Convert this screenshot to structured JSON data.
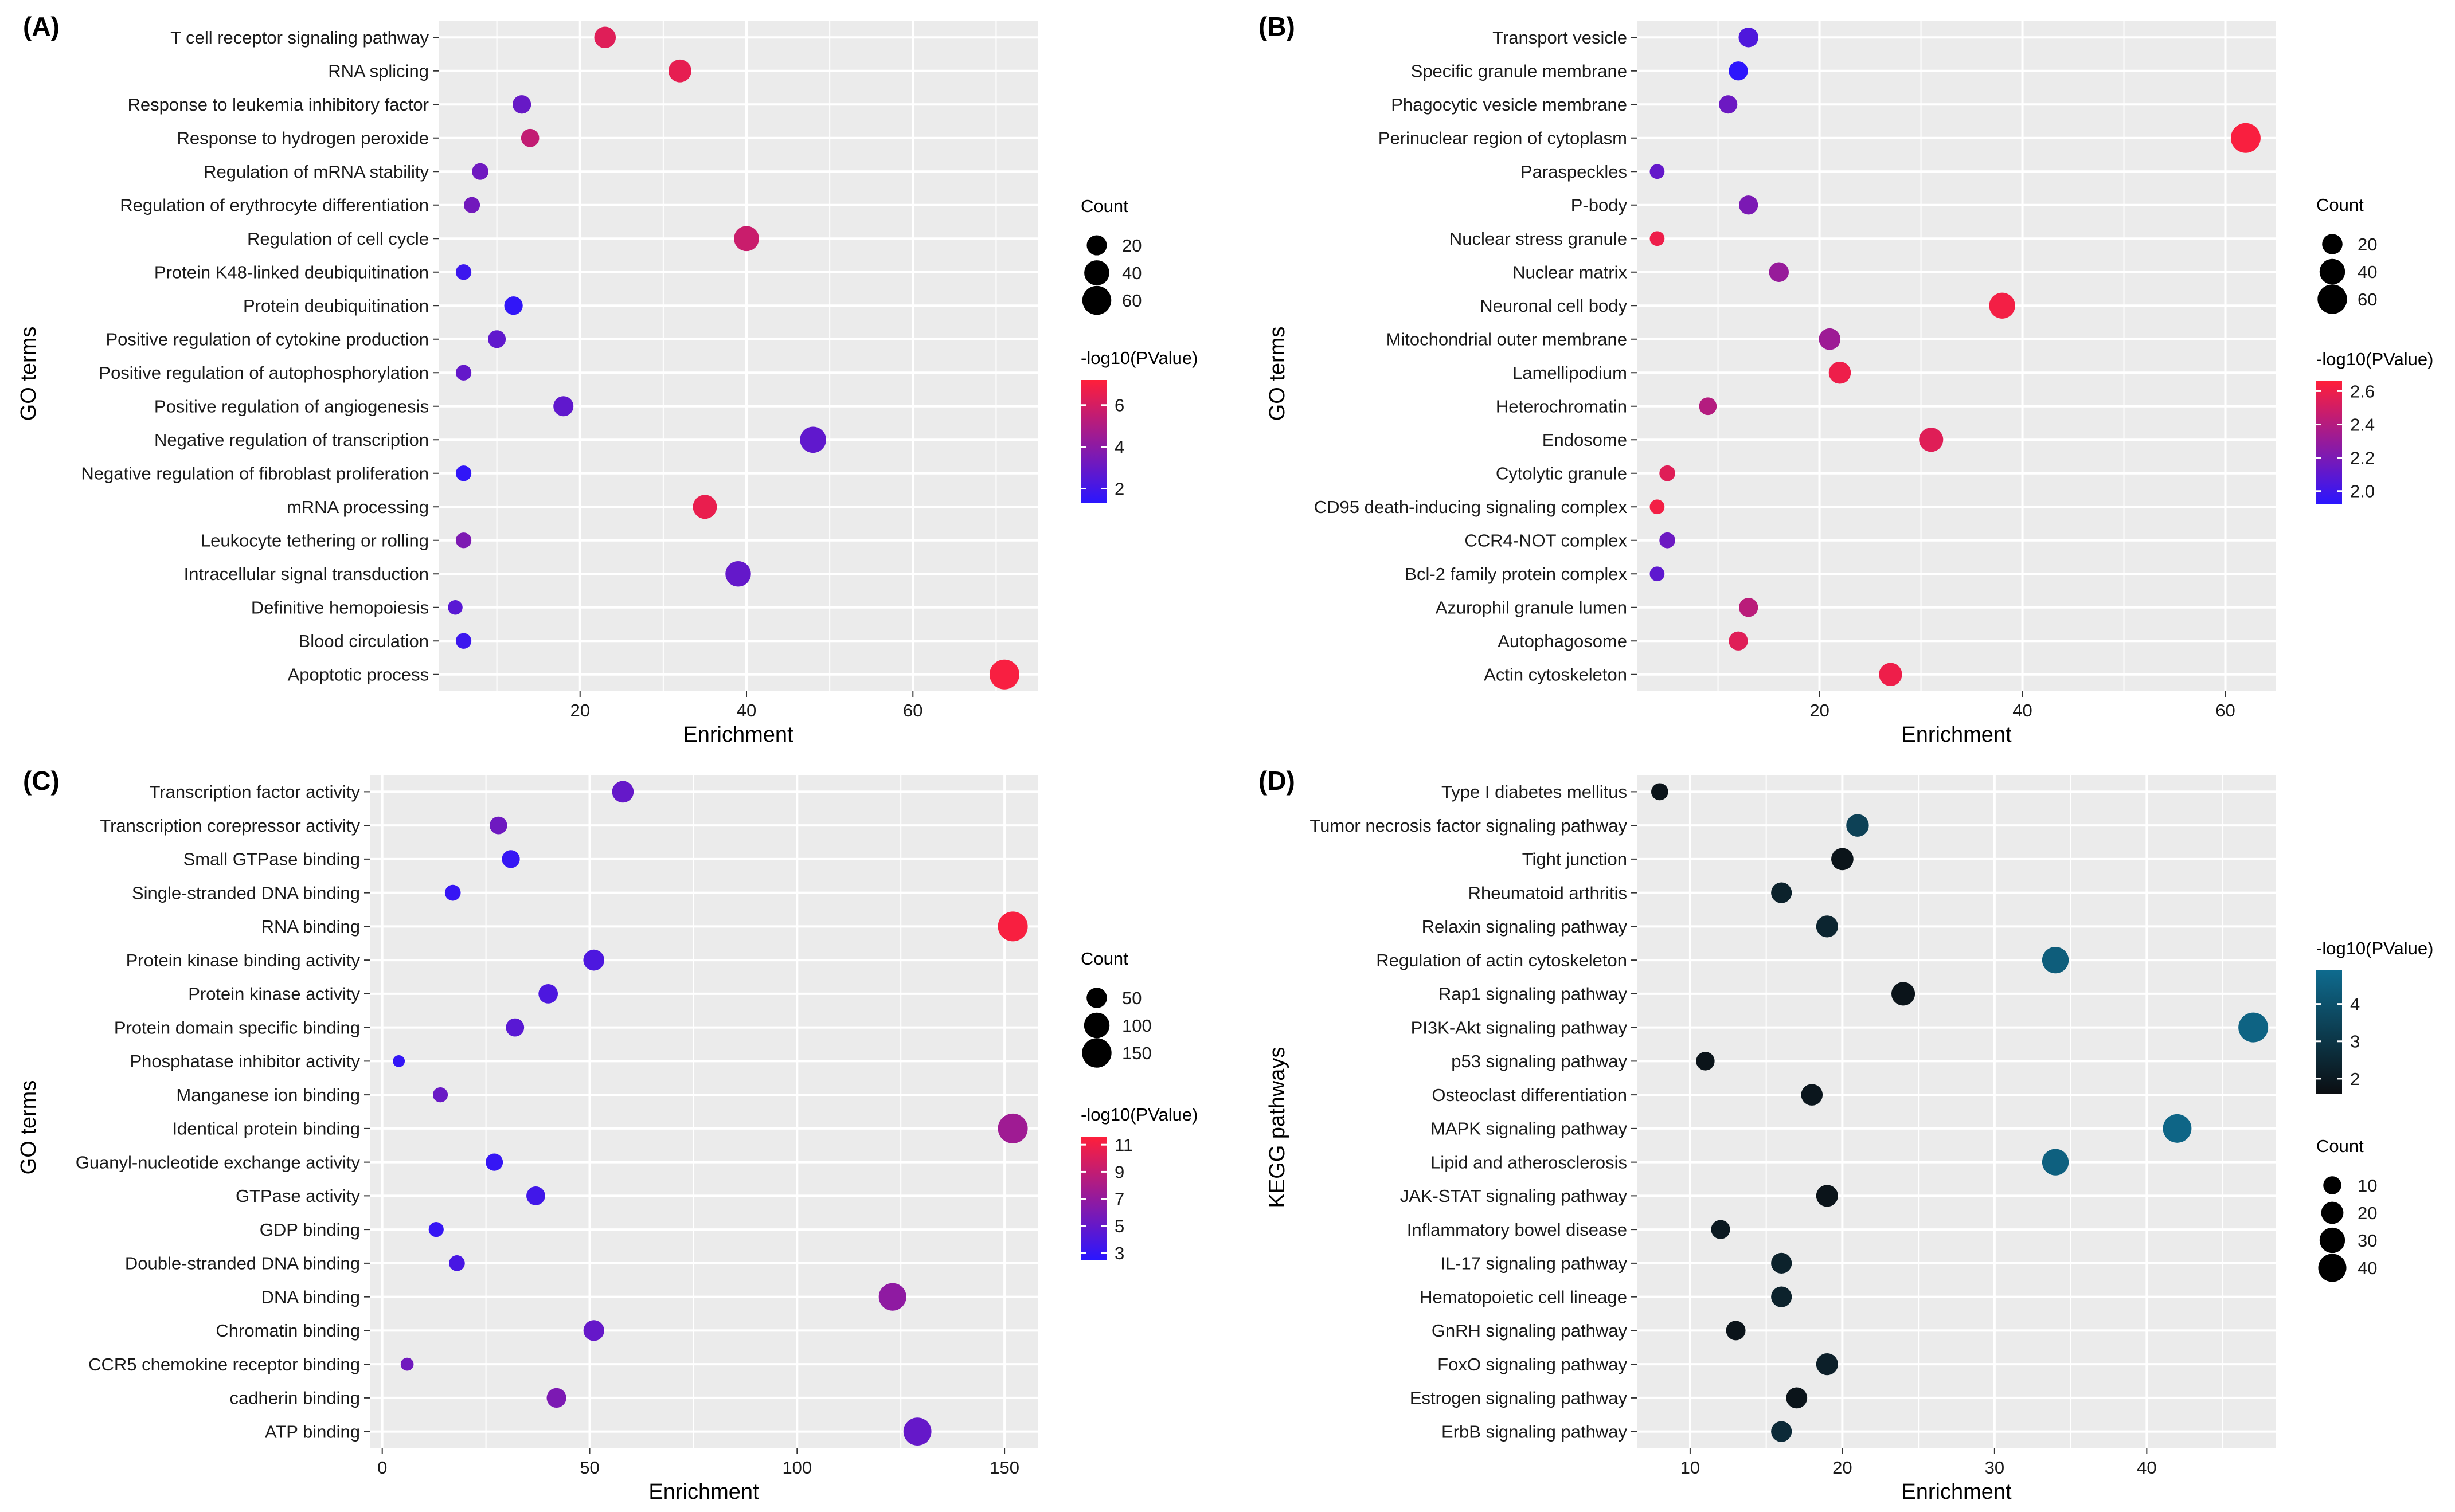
{
  "chart_data": [
    {
      "panel": "(A)",
      "type": "scatter",
      "xlabel": "Enrichment",
      "ylabel": "GO terms",
      "xlim": [
        3,
        75
      ],
      "xticks": [
        20,
        40,
        60
      ],
      "legend_position": "right",
      "size_legend": {
        "title": "Count",
        "values": [
          20,
          40,
          60
        ]
      },
      "color_legend": {
        "title": "-log10(PValue)",
        "ticks": [
          2,
          4,
          6
        ],
        "range": [
          1.3,
          7.2
        ],
        "low": "#2a16ff",
        "high": "#ff1f3a"
      },
      "points": [
        {
          "term": "T cell receptor signaling pathway",
          "enrichment": 23,
          "count": 25,
          "pvalue": 6.3
        },
        {
          "term": "RNA splicing",
          "enrichment": 32,
          "count": 30,
          "pvalue": 6.5
        },
        {
          "term": "Response to leukemia inhibitory factor",
          "enrichment": 13,
          "count": 15,
          "pvalue": 3.0
        },
        {
          "term": "Response to hydrogen peroxide",
          "enrichment": 14,
          "count": 14,
          "pvalue": 5.5
        },
        {
          "term": "Regulation of mRNA stability",
          "enrichment": 8,
          "count": 10,
          "pvalue": 3.2
        },
        {
          "term": "Regulation of erythrocyte differentiation",
          "enrichment": 7,
          "count": 9,
          "pvalue": 3.3
        },
        {
          "term": "Regulation of cell cycle",
          "enrichment": 40,
          "count": 40,
          "pvalue": 5.7
        },
        {
          "term": "Protein K48-linked deubiquitination",
          "enrichment": 6,
          "count": 8,
          "pvalue": 1.8
        },
        {
          "term": "Protein deubiquitination",
          "enrichment": 12,
          "count": 15,
          "pvalue": 1.5
        },
        {
          "term": "Positive regulation of cytokine production",
          "enrichment": 10,
          "count": 13,
          "pvalue": 2.8
        },
        {
          "term": "Positive regulation of autophosphorylation",
          "enrichment": 6,
          "count": 8,
          "pvalue": 2.9
        },
        {
          "term": "Positive regulation of angiogenesis",
          "enrichment": 18,
          "count": 20,
          "pvalue": 2.8
        },
        {
          "term": "Negative regulation of transcription",
          "enrichment": 48,
          "count": 45,
          "pvalue": 2.8
        },
        {
          "term": "Negative regulation of fibroblast proliferation",
          "enrichment": 6,
          "count": 8,
          "pvalue": 1.5
        },
        {
          "term": "mRNA processing",
          "enrichment": 35,
          "count": 35,
          "pvalue": 6.6
        },
        {
          "term": "Leukocyte tethering or rolling",
          "enrichment": 6,
          "count": 8,
          "pvalue": 3.6
        },
        {
          "term": "Intracellular signal transduction",
          "enrichment": 39,
          "count": 42,
          "pvalue": 2.9
        },
        {
          "term": "Definitive hemopoiesis",
          "enrichment": 5,
          "count": 6,
          "pvalue": 2.6
        },
        {
          "term": "Blood circulation",
          "enrichment": 6,
          "count": 8,
          "pvalue": 1.8
        },
        {
          "term": "Apoptotic process",
          "enrichment": 71,
          "count": 65,
          "pvalue": 7.0
        }
      ]
    },
    {
      "panel": "(B)",
      "type": "scatter",
      "xlabel": "Enrichment",
      "ylabel": "GO terms",
      "xlim": [
        2,
        65
      ],
      "xticks": [
        20,
        40,
        60
      ],
      "legend_position": "right",
      "size_legend": {
        "title": "Count",
        "values": [
          20,
          40,
          60
        ]
      },
      "color_legend": {
        "title": "-log10(PValue)",
        "ticks": [
          "2.0",
          "2.2",
          "2.4",
          "2.6"
        ],
        "range": [
          1.92,
          2.66
        ],
        "low": "#2a16ff",
        "high": "#ff1f3a"
      },
      "points": [
        {
          "term": "Transport vesicle",
          "enrichment": 13,
          "count": 18,
          "pvalue": 2.05
        },
        {
          "term": "Specific granule membrane",
          "enrichment": 12,
          "count": 16,
          "pvalue": 1.93
        },
        {
          "term": "Phagocytic vesicle membrane",
          "enrichment": 11,
          "count": 14,
          "pvalue": 2.15
        },
        {
          "term": "Perinuclear region of cytoplasm",
          "enrichment": 62,
          "count": 62,
          "pvalue": 2.64
        },
        {
          "term": "Paraspeckles",
          "enrichment": 4,
          "count": 6,
          "pvalue": 2.12
        },
        {
          "term": "P-body",
          "enrichment": 13,
          "count": 16,
          "pvalue": 2.2
        },
        {
          "term": "Nuclear stress granule",
          "enrichment": 4,
          "count": 6,
          "pvalue": 2.6
        },
        {
          "term": "Nuclear matrix",
          "enrichment": 16,
          "count": 18,
          "pvalue": 2.3
        },
        {
          "term": "Neuronal cell body",
          "enrichment": 38,
          "count": 42,
          "pvalue": 2.62
        },
        {
          "term": "Mitochondrial outer membrane",
          "enrichment": 21,
          "count": 24,
          "pvalue": 2.32
        },
        {
          "term": "Lamellipodium",
          "enrichment": 22,
          "count": 26,
          "pvalue": 2.6
        },
        {
          "term": "Heterochromatin",
          "enrichment": 9,
          "count": 12,
          "pvalue": 2.4
        },
        {
          "term": "Endosome",
          "enrichment": 31,
          "count": 34,
          "pvalue": 2.55
        },
        {
          "term": "Cytolytic granule",
          "enrichment": 5,
          "count": 8,
          "pvalue": 2.55
        },
        {
          "term": "CD95 death-inducing signaling complex",
          "enrichment": 4,
          "count": 6,
          "pvalue": 2.62
        },
        {
          "term": "CCR4-NOT complex",
          "enrichment": 5,
          "count": 8,
          "pvalue": 2.15
        },
        {
          "term": "Bcl-2 family protein complex",
          "enrichment": 4,
          "count": 6,
          "pvalue": 2.1
        },
        {
          "term": "Azurophil granule lumen",
          "enrichment": 13,
          "count": 16,
          "pvalue": 2.42
        },
        {
          "term": "Autophagosome",
          "enrichment": 12,
          "count": 16,
          "pvalue": 2.55
        },
        {
          "term": "Actin cytoskeleton",
          "enrichment": 27,
          "count": 30,
          "pvalue": 2.6
        }
      ]
    },
    {
      "panel": "(C)",
      "type": "scatter",
      "xlabel": "Enrichment",
      "ylabel": "GO terms",
      "xlim": [
        -3,
        158
      ],
      "xticks": [
        0,
        50,
        100,
        150
      ],
      "legend_position": "right",
      "size_legend": {
        "title": "Count",
        "values": [
          50,
          100,
          150
        ]
      },
      "color_legend": {
        "title": "-log10(PValue)",
        "ticks": [
          3,
          5,
          7,
          9,
          11
        ],
        "range": [
          2.5,
          11.6
        ],
        "low": "#2a16ff",
        "high": "#ff1f3a"
      },
      "points": [
        {
          "term": "Transcription factor activity",
          "enrichment": 58,
          "count": 60,
          "pvalue": 5.0
        },
        {
          "term": "Transcription corepressor activity",
          "enrichment": 28,
          "count": 30,
          "pvalue": 5.4
        },
        {
          "term": "Small GTPase binding",
          "enrichment": 31,
          "count": 32,
          "pvalue": 3.0
        },
        {
          "term": "Single-stranded DNA binding",
          "enrichment": 17,
          "count": 20,
          "pvalue": 3.0
        },
        {
          "term": "RNA binding",
          "enrichment": 152,
          "count": 155,
          "pvalue": 11.3
        },
        {
          "term": "Protein kinase binding activity ",
          "enrichment": 51,
          "count": 55,
          "pvalue": 4.0
        },
        {
          "term": "Protein kinase activity",
          "enrichment": 40,
          "count": 42,
          "pvalue": 4.0
        },
        {
          "term": "Protein domain specific binding",
          "enrichment": 32,
          "count": 34,
          "pvalue": 4.5
        },
        {
          "term": "Phosphatase inhibitor activity",
          "enrichment": 4,
          "count": 5,
          "pvalue": 2.9
        },
        {
          "term": "Manganese ion binding",
          "enrichment": 14,
          "count": 16,
          "pvalue": 5.2
        },
        {
          "term": "Identical protein binding",
          "enrichment": 152,
          "count": 155,
          "pvalue": 7.5
        },
        {
          "term": "Guanyl-nucleotide exchange activity",
          "enrichment": 27,
          "count": 28,
          "pvalue": 3.0
        },
        {
          "term": "GTPase activity",
          "enrichment": 37,
          "count": 38,
          "pvalue": 3.5
        },
        {
          "term": "GDP binding",
          "enrichment": 13,
          "count": 16,
          "pvalue": 3.0
        },
        {
          "term": "Double-stranded DNA binding",
          "enrichment": 18,
          "count": 20,
          "pvalue": 3.8
        },
        {
          "term": "DNA binding",
          "enrichment": 123,
          "count": 125,
          "pvalue": 6.8
        },
        {
          "term": "Chromatin binding",
          "enrichment": 51,
          "count": 53,
          "pvalue": 5.0
        },
        {
          "term": "CCR5 chemokine receptor binding",
          "enrichment": 6,
          "count": 8,
          "pvalue": 5.5
        },
        {
          "term": "cadherin binding",
          "enrichment": 42,
          "count": 44,
          "pvalue": 6.0
        },
        {
          "term": "ATP binding",
          "enrichment": 129,
          "count": 130,
          "pvalue": 5.0
        }
      ]
    },
    {
      "panel": "(D)",
      "type": "scatter",
      "xlabel": "Enrichment",
      "ylabel": "KEGG pathways",
      "xlim": [
        6.5,
        48.5
      ],
      "xticks": [
        10,
        20,
        30,
        40
      ],
      "legend_position": "right",
      "size_legend": {
        "title": "Count",
        "values": [
          10,
          20,
          30,
          40
        ]
      },
      "color_legend": {
        "title": "-log10(PValue)",
        "ticks": [
          2,
          3,
          4
        ],
        "range": [
          1.6,
          4.9
        ],
        "low": "#0b0e12",
        "high": "#0e6b8e"
      },
      "points": [
        {
          "term": "Type I diabetes mellitus",
          "enrichment": 8,
          "count": 8,
          "pvalue": 1.8
        },
        {
          "term": "Tumor necrosis factor signaling pathway",
          "enrichment": 21,
          "count": 21,
          "pvalue": 3.4
        },
        {
          "term": "Tight junction",
          "enrichment": 20,
          "count": 20,
          "pvalue": 1.8
        },
        {
          "term": "Rheumatoid arthritis",
          "enrichment": 16,
          "count": 16,
          "pvalue": 2.3
        },
        {
          "term": "Relaxin signaling pathway",
          "enrichment": 19,
          "count": 19,
          "pvalue": 2.4
        },
        {
          "term": "Regulation of actin cytoskeleton",
          "enrichment": 34,
          "count": 34,
          "pvalue": 4.4
        },
        {
          "term": "Rap1 signaling pathway",
          "enrichment": 24,
          "count": 24,
          "pvalue": 1.8
        },
        {
          "term": "PI3K-Akt signaling pathway",
          "enrichment": 47,
          "count": 47,
          "pvalue": 4.6
        },
        {
          "term": "p53 signaling pathway",
          "enrichment": 11,
          "count": 11,
          "pvalue": 1.8
        },
        {
          "term": "Osteoclast differentiation",
          "enrichment": 18,
          "count": 18,
          "pvalue": 1.9
        },
        {
          "term": "MAPK signaling pathway",
          "enrichment": 42,
          "count": 42,
          "pvalue": 4.7
        },
        {
          "term": "Lipid and atherosclerosis",
          "enrichment": 34,
          "count": 34,
          "pvalue": 4.5
        },
        {
          "term": "JAK-STAT signaling pathway",
          "enrichment": 19,
          "count": 19,
          "pvalue": 1.8
        },
        {
          "term": "Inflammatory bowel disease",
          "enrichment": 12,
          "count": 12,
          "pvalue": 2.0
        },
        {
          "term": "IL-17 signaling pathway",
          "enrichment": 16,
          "count": 16,
          "pvalue": 2.3
        },
        {
          "term": "Hematopoietic cell lineage",
          "enrichment": 16,
          "count": 16,
          "pvalue": 2.3
        },
        {
          "term": "GnRH signaling pathway",
          "enrichment": 13,
          "count": 13,
          "pvalue": 1.8
        },
        {
          "term": "FoxO signaling pathway",
          "enrichment": 19,
          "count": 19,
          "pvalue": 2.2
        },
        {
          "term": "Estrogen signaling pathway",
          "enrichment": 17,
          "count": 17,
          "pvalue": 1.8
        },
        {
          "term": "ErbB signaling pathway",
          "enrichment": 16,
          "count": 16,
          "pvalue": 2.6
        }
      ]
    }
  ]
}
